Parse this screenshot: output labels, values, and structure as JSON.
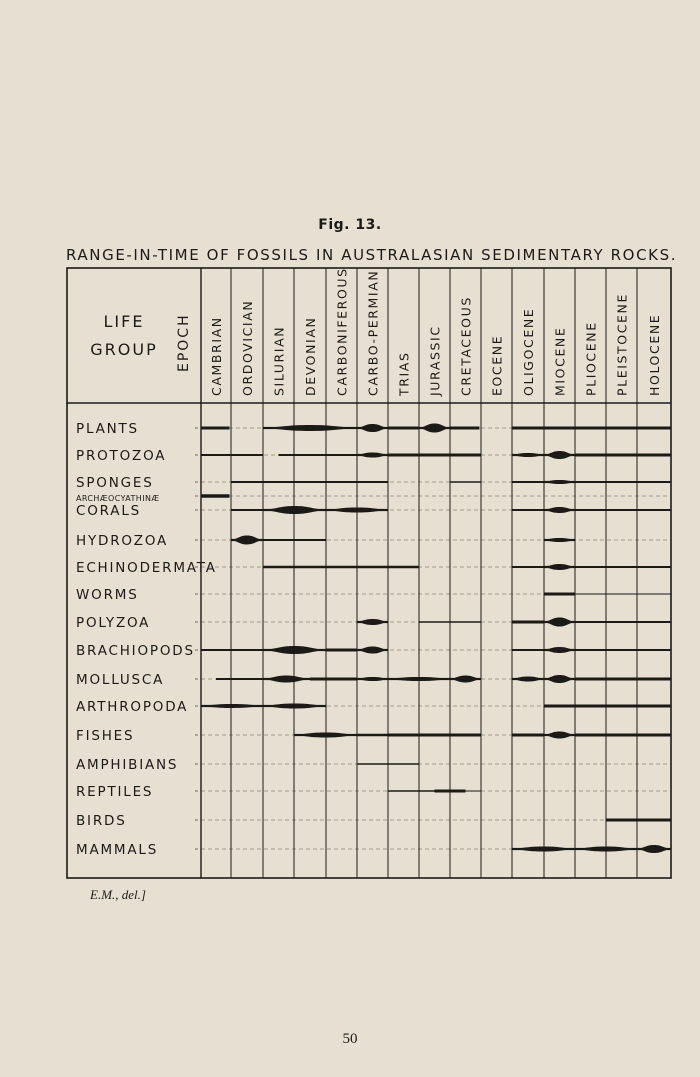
{
  "figure_label": "Fig. 13.",
  "title": "Range-in-Time of Fossils in Australasian Sedimentary Rocks.",
  "header": {
    "life": "Life",
    "group": "Group",
    "epoch": "Epoch"
  },
  "periods": [
    "Cambrian",
    "Ordovician",
    "Silurian",
    "Devonian",
    "Carboniferous",
    "Carbo-Permian",
    "Trias",
    "Jurassic",
    "Cretaceous",
    "Eocene",
    "Oligocene",
    "Miocene",
    "Pliocene",
    "Pleistocene",
    "Holocene"
  ],
  "groups": [
    {
      "name": "Plants",
      "spans": [
        [
          0,
          0.95,
          3
        ],
        [
          2,
          5,
          6
        ],
        [
          5,
          6,
          8
        ],
        [
          6,
          7,
          3
        ],
        [
          7,
          8,
          9
        ],
        [
          8,
          8.95,
          3
        ],
        [
          10,
          15,
          3
        ]
      ]
    },
    {
      "name": "Protozoa",
      "spans": [
        [
          0,
          2,
          2
        ],
        [
          2.5,
          5,
          2
        ],
        [
          5,
          6,
          5
        ],
        [
          6,
          9,
          3
        ],
        [
          10,
          11,
          4
        ],
        [
          11,
          12,
          8
        ],
        [
          12,
          15,
          3
        ]
      ]
    },
    {
      "name": "Sponges",
      "spans": [
        [
          1,
          6,
          2
        ],
        [
          8,
          9,
          1.5
        ],
        [
          10,
          11,
          2
        ],
        [
          11,
          12,
          4
        ],
        [
          12,
          15,
          2
        ]
      ]
    },
    {
      "name": "Archæocyathinæ",
      "spans": [
        [
          0,
          0.95,
          3.5
        ]
      ]
    },
    {
      "name": "Corals",
      "spans": [
        [
          1,
          2,
          2
        ],
        [
          2,
          4,
          8
        ],
        [
          4,
          6,
          5
        ],
        [
          10,
          11,
          2
        ],
        [
          11,
          12,
          6
        ],
        [
          12,
          15,
          2
        ]
      ]
    },
    {
      "name": "Hydrozoa",
      "spans": [
        [
          1,
          2,
          9
        ],
        [
          2,
          4,
          2
        ],
        [
          11,
          12,
          4
        ]
      ]
    },
    {
      "name": "Echinodermata",
      "spans": [
        [
          2,
          7,
          2.5
        ],
        [
          10,
          11,
          2
        ],
        [
          11,
          12,
          6
        ],
        [
          12,
          15,
          2
        ]
      ]
    },
    {
      "name": "Worms",
      "spans": [
        [
          11,
          12,
          3
        ],
        [
          12,
          15,
          1
        ]
      ]
    },
    {
      "name": "Polyzoa",
      "spans": [
        [
          5,
          6,
          6
        ],
        [
          7,
          9,
          1.5
        ],
        [
          10,
          11,
          3
        ],
        [
          11,
          12,
          9
        ],
        [
          12,
          15,
          2
        ]
      ]
    },
    {
      "name": "Brachiopods",
      "spans": [
        [
          0,
          2,
          2
        ],
        [
          2,
          4,
          8
        ],
        [
          4,
          5,
          3
        ],
        [
          5,
          6,
          7
        ],
        [
          10,
          11,
          2
        ],
        [
          11,
          12,
          6
        ],
        [
          12,
          15,
          2
        ]
      ]
    },
    {
      "name": "Mollusca",
      "spans": [
        [
          0.5,
          2,
          2
        ],
        [
          2,
          3.5,
          7
        ],
        [
          3.5,
          5,
          3
        ],
        [
          5,
          6,
          4
        ],
        [
          6,
          8,
          4
        ],
        [
          8,
          9,
          7
        ],
        [
          10,
          11,
          5
        ],
        [
          11,
          12,
          8
        ],
        [
          12,
          15,
          3
        ]
      ]
    },
    {
      "name": "Arthropoda",
      "spans": [
        [
          0,
          2,
          4
        ],
        [
          2,
          4,
          5
        ],
        [
          11,
          15,
          3
        ]
      ]
    },
    {
      "name": "Fishes",
      "spans": [
        [
          3,
          5,
          5
        ],
        [
          5,
          6,
          2.5
        ],
        [
          6,
          9,
          3
        ],
        [
          10,
          11,
          3
        ],
        [
          11,
          12,
          7
        ],
        [
          12,
          15,
          3
        ]
      ]
    },
    {
      "name": "Amphibians",
      "spans": [
        [
          5,
          7,
          1.5
        ]
      ]
    },
    {
      "name": "Reptiles",
      "spans": [
        [
          6,
          7.5,
          1.5
        ],
        [
          7.5,
          8.5,
          3
        ],
        [
          8.5,
          9,
          1
        ]
      ]
    },
    {
      "name": "Birds",
      "spans": [
        [
          13,
          15,
          3
        ]
      ]
    },
    {
      "name": "Mammals",
      "spans": [
        [
          10,
          12,
          5
        ],
        [
          12,
          14,
          5
        ],
        [
          14,
          15,
          8
        ]
      ]
    }
  ],
  "credit": "E.M., del.]",
  "page_number": "50",
  "colors": {
    "ink": "#1c1a17",
    "paper": "#e7e0d2"
  }
}
